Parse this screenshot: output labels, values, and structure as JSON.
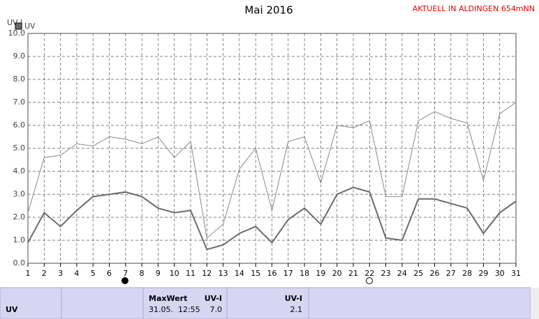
{
  "chart_data": {
    "type": "line",
    "title": "Mai 2016",
    "subtitle": "AKTUELL IN ALDINGEN 654mNN",
    "ylabel": "UV-I",
    "x": [
      1,
      2,
      3,
      4,
      5,
      6,
      7,
      8,
      9,
      10,
      11,
      12,
      13,
      14,
      15,
      16,
      17,
      18,
      19,
      20,
      21,
      22,
      23,
      24,
      25,
      26,
      27,
      28,
      29,
      30,
      31
    ],
    "xlim": [
      1,
      31
    ],
    "xticks": [
      1,
      2,
      3,
      4,
      5,
      6,
      7,
      8,
      9,
      10,
      11,
      12,
      13,
      14,
      15,
      16,
      17,
      18,
      19,
      20,
      21,
      22,
      23,
      24,
      25,
      26,
      27,
      28,
      29,
      30,
      31
    ],
    "ylim": [
      0,
      10
    ],
    "yticks": [
      {
        "value": 0,
        "label": "0.0"
      },
      {
        "value": 1,
        "label": "1.0"
      },
      {
        "value": 2,
        "label": "2.0"
      },
      {
        "value": 3,
        "label": "3.0"
      },
      {
        "value": 4,
        "label": "4.0"
      },
      {
        "value": 5,
        "label": "5.0"
      },
      {
        "value": 6,
        "label": "6.0"
      },
      {
        "value": 7,
        "label": "7.0"
      },
      {
        "value": 8,
        "label": "8.0"
      },
      {
        "value": 9,
        "label": "9.0"
      },
      {
        "value": 10,
        "label": "10.0"
      }
    ],
    "grid": true,
    "series": [
      {
        "name": "UV",
        "color": "#6a6a6a",
        "values": [
          0.9,
          2.2,
          1.6,
          2.3,
          2.9,
          3.0,
          3.1,
          2.9,
          2.4,
          2.2,
          2.3,
          0.6,
          0.8,
          1.3,
          1.6,
          0.9,
          1.9,
          2.4,
          1.7,
          3.0,
          3.3,
          3.1,
          1.1,
          1.0,
          2.8,
          2.8,
          2.6,
          2.4,
          1.3,
          2.2,
          2.7
        ]
      },
      {
        "color": "#888888",
        "values": [
          2.2,
          4.6,
          4.7,
          5.2,
          5.1,
          5.5,
          5.4,
          5.2,
          5.5,
          4.6,
          5.3,
          1.1,
          1.7,
          4.1,
          5.0,
          2.3,
          5.3,
          5.5,
          3.5,
          6.0,
          5.9,
          6.2,
          2.9,
          2.9,
          6.2,
          6.6,
          6.3,
          6.1,
          3.6,
          6.5,
          7.0
        ]
      }
    ]
  },
  "footer": {
    "label": "UV",
    "maxwert": {
      "header": "MaxWert",
      "unit": "UV-I",
      "time": "31.05.  12:55",
      "value": "7.0"
    },
    "current": {
      "unit": "UV-I",
      "value": "2.1"
    }
  }
}
